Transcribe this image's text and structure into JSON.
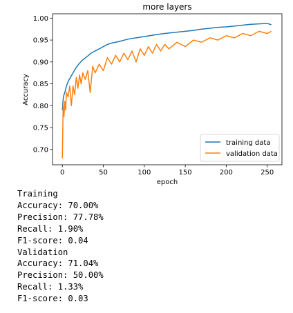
{
  "chart_data": {
    "type": "line",
    "title": "more layers",
    "xlabel": "epoch",
    "ylabel": "Accuracy",
    "xlim": [
      -12,
      268
    ],
    "ylim": [
      0.665,
      1.01
    ],
    "x_ticks": [
      0,
      50,
      100,
      150,
      200,
      250
    ],
    "y_ticks": [
      0.7,
      0.75,
      0.8,
      0.85,
      0.9,
      0.95,
      1.0
    ],
    "x_tick_labels": [
      "0",
      "50",
      "100",
      "150",
      "200",
      "250"
    ],
    "y_tick_labels": [
      "0.70",
      "0.75",
      "0.80",
      "0.85",
      "0.90",
      "0.95",
      "1.00"
    ],
    "grid": false,
    "legend_position": "lower-right",
    "series": [
      {
        "name": "training data",
        "color": "#1f77b4",
        "x": [
          0,
          1,
          2,
          3,
          5,
          7,
          10,
          13,
          16,
          20,
          25,
          30,
          35,
          40,
          45,
          50,
          55,
          60,
          70,
          80,
          90,
          100,
          110,
          120,
          130,
          140,
          150,
          160,
          170,
          180,
          190,
          200,
          210,
          220,
          230,
          240,
          250,
          255
        ],
        "y": [
          0.79,
          0.815,
          0.825,
          0.83,
          0.845,
          0.855,
          0.865,
          0.875,
          0.885,
          0.895,
          0.905,
          0.912,
          0.92,
          0.925,
          0.93,
          0.935,
          0.94,
          0.943,
          0.947,
          0.952,
          0.955,
          0.958,
          0.961,
          0.964,
          0.966,
          0.968,
          0.97,
          0.972,
          0.975,
          0.977,
          0.979,
          0.98,
          0.982,
          0.984,
          0.986,
          0.987,
          0.988,
          0.985
        ]
      },
      {
        "name": "validation data",
        "color": "#ff7f0e",
        "x": [
          0,
          1,
          2,
          3,
          4,
          5,
          7,
          9,
          11,
          13,
          15,
          17,
          19,
          21,
          23,
          25,
          28,
          31,
          34,
          37,
          40,
          45,
          50,
          55,
          60,
          65,
          70,
          75,
          80,
          85,
          90,
          95,
          100,
          105,
          110,
          115,
          120,
          125,
          130,
          140,
          150,
          160,
          170,
          180,
          190,
          200,
          210,
          220,
          230,
          240,
          250,
          255
        ],
        "y": [
          0.68,
          0.8,
          0.775,
          0.81,
          0.79,
          0.83,
          0.82,
          0.845,
          0.8,
          0.845,
          0.825,
          0.865,
          0.84,
          0.87,
          0.85,
          0.875,
          0.86,
          0.88,
          0.83,
          0.89,
          0.875,
          0.895,
          0.88,
          0.91,
          0.895,
          0.915,
          0.9,
          0.92,
          0.905,
          0.925,
          0.9,
          0.93,
          0.915,
          0.935,
          0.92,
          0.94,
          0.925,
          0.94,
          0.93,
          0.945,
          0.935,
          0.95,
          0.945,
          0.955,
          0.95,
          0.96,
          0.955,
          0.965,
          0.96,
          0.97,
          0.965,
          0.97
        ]
      }
    ]
  },
  "output": {
    "lines": [
      "Training",
      "Accuracy: 70.00%",
      "Precision: 77.78%",
      "Recall: 1.90%",
      "F1-score: 0.04",
      "Validation",
      "Accuracy: 71.04%",
      "Precision: 50.00%",
      "Recall: 1.33%",
      "F1-score: 0.03"
    ]
  }
}
